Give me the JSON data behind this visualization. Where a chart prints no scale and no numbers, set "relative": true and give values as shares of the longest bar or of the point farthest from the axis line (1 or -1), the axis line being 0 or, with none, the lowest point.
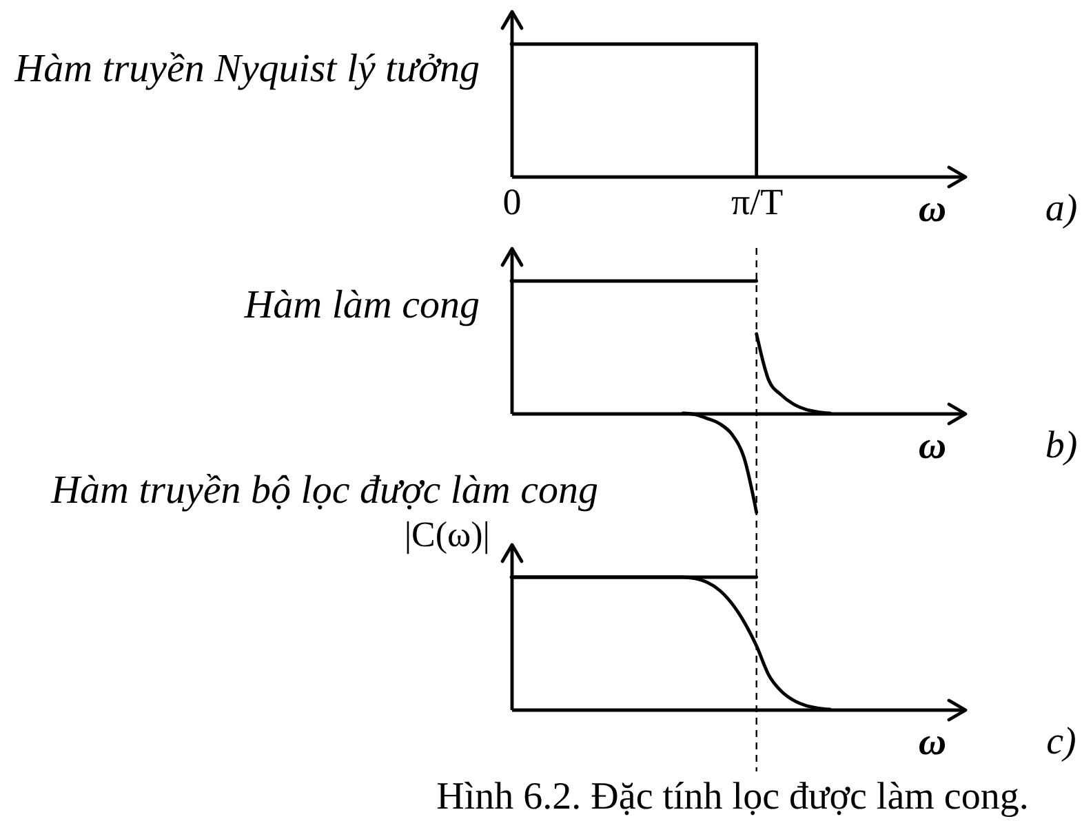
{
  "chart_data": [
    {
      "type": "step",
      "title": "Hàm truyền Nyquist lý tưởng",
      "xlabel": "ω",
      "relative": true,
      "categories": [
        "0",
        null,
        null,
        null,
        null,
        null,
        null,
        null,
        null,
        null,
        null,
        null,
        null,
        null,
        null,
        null,
        null,
        null,
        null,
        null,
        "π/T",
        null,
        null,
        null,
        null,
        null,
        null,
        null,
        null,
        null,
        null,
        null,
        null,
        null,
        null,
        null,
        null,
        null
      ],
      "tick_labels": "x",
      "series": [
        {
          "color": "#000000",
          "values": [
            1,
            1,
            1,
            1,
            1,
            1,
            1,
            1,
            1,
            1,
            1,
            1,
            1,
            1,
            1,
            1,
            1,
            1,
            1,
            1,
            0,
            null,
            null,
            null,
            null,
            null,
            null,
            null,
            null,
            null,
            null,
            null,
            null,
            null,
            null,
            null,
            null,
            null
          ]
        }
      ],
      "annotations": [
        "a)"
      ]
    },
    {
      "type": "line",
      "title": "Hàm làm cong",
      "xlabel": "ω",
      "relative": true,
      "categories": [
        "0",
        null,
        null,
        null,
        null,
        null,
        null,
        null,
        null,
        null,
        null,
        null,
        null,
        null,
        null,
        null,
        null,
        null,
        null,
        null,
        "π/T",
        null,
        null,
        null,
        null,
        null,
        null,
        null,
        null,
        null,
        null,
        null,
        null,
        null,
        null,
        null,
        null,
        null
      ],
      "tick_labels": false,
      "series": [
        {
          "color": "#000000",
          "values": [
            1,
            1,
            1,
            1,
            1,
            1,
            1,
            1,
            1,
            1,
            1,
            1,
            1,
            1,
            1,
            1,
            1,
            1,
            1,
            1,
            1,
            null,
            null,
            null,
            null,
            null,
            null,
            null,
            null,
            null,
            null,
            null,
            null,
            null,
            null,
            null,
            null,
            null
          ]
        },
        {
          "color": "#000000",
          "values": [
            null,
            null,
            null,
            null,
            null,
            null,
            null,
            null,
            null,
            null,
            null,
            null,
            null,
            null,
            null,
            null,
            null,
            null,
            null,
            null,
            0.6,
            0.25,
            0.14,
            0.07,
            0.03,
            0.01,
            0,
            null,
            null,
            null,
            null,
            null,
            null,
            null,
            null,
            null,
            null,
            null
          ]
        },
        {
          "color": "#000000",
          "values": [
            null,
            null,
            null,
            null,
            null,
            null,
            null,
            null,
            null,
            null,
            null,
            null,
            null,
            null,
            0,
            -0.01,
            -0.04,
            -0.08,
            -0.16,
            -0.34,
            -0.75,
            null,
            null,
            null,
            null,
            null,
            null,
            null,
            null,
            null,
            null,
            null,
            null,
            null,
            null,
            null,
            null,
            null
          ]
        }
      ],
      "ref_lines": [
        {
          "axis": "x",
          "value": "π/T",
          "color": "#000000",
          "line_style": "dashed"
        }
      ],
      "annotations": [
        "b)"
      ]
    },
    {
      "type": "line",
      "title": "Hàm truyền bộ lọc được làm cong",
      "xlabel": "ω",
      "ylabel": "|C(ω)|",
      "relative": true,
      "categories": [
        "0",
        null,
        null,
        null,
        null,
        null,
        null,
        null,
        null,
        null,
        null,
        null,
        null,
        null,
        null,
        null,
        null,
        null,
        null,
        null,
        "π/T",
        null,
        null,
        null,
        null,
        null,
        null,
        null,
        null,
        null,
        null,
        null,
        null,
        null,
        null,
        null,
        null,
        null
      ],
      "tick_labels": false,
      "series": [
        {
          "color": "#000000",
          "values": [
            1,
            1,
            1,
            1,
            1,
            1,
            1,
            1,
            1,
            1,
            1,
            1,
            1,
            1,
            1,
            1,
            1,
            1,
            1,
            1,
            1,
            null,
            null,
            null,
            null,
            null,
            null,
            null,
            null,
            null,
            null,
            null,
            null,
            null,
            null,
            null,
            null,
            null
          ]
        },
        {
          "color": "#000000",
          "values": [
            1,
            1,
            1,
            1,
            1,
            1,
            1,
            1,
            1,
            1,
            1,
            1,
            1,
            1,
            1,
            0.99,
            0.96,
            0.9,
            0.8,
            0.66,
            0.48,
            0.26,
            0.14,
            0.07,
            0.03,
            0.01,
            0,
            null,
            null,
            null,
            null,
            null,
            null,
            null,
            null,
            null,
            null,
            null
          ]
        }
      ],
      "ref_lines": [
        {
          "axis": "x",
          "value": "π/T",
          "color": "#000000",
          "line_style": "dashed"
        }
      ],
      "annotations": [
        "c)",
        "Hình 6.2. Đặc tính lọc được làm cong."
      ]
    }
  ]
}
